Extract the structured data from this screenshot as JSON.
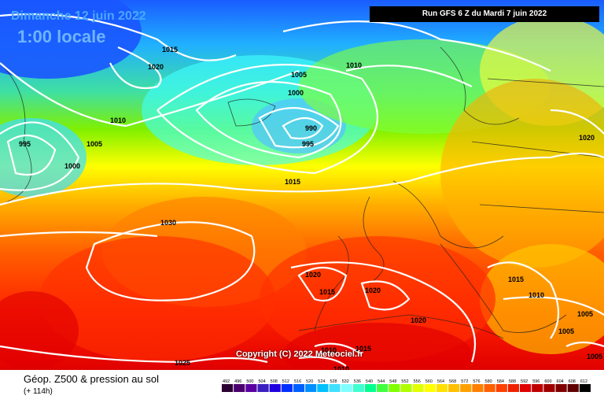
{
  "header": {
    "date": "Dimanche 12 juin 2022",
    "time": "1:00 locale",
    "run": "Run GFS 6 Z du Mardi 7 juin 2022"
  },
  "copyright": "Copyright (C) 2022 Meteociel.fr",
  "footer": {
    "title": "Géop. Z500 & pression au sol",
    "subtitle": "(+ 114h)"
  },
  "legend_values": [
    "492",
    "496",
    "500",
    "504",
    "508",
    "512",
    "516",
    "520",
    "524",
    "528",
    "532",
    "536",
    "540",
    "544",
    "548",
    "552",
    "556",
    "560",
    "564",
    "568",
    "572",
    "576",
    "580",
    "584",
    "588",
    "592",
    "596",
    "600",
    "604",
    "608",
    "612"
  ],
  "legend_colors": [
    "#2b0033",
    "#4b006e",
    "#5a00a0",
    "#3b1fc0",
    "#2000e0",
    "#0030ff",
    "#0060ff",
    "#0090ff",
    "#00c0ff",
    "#40e0ff",
    "#80ffff",
    "#40ffd0",
    "#00ff90",
    "#40ff40",
    "#80ff00",
    "#b0ff00",
    "#e0ff00",
    "#ffff00",
    "#ffe000",
    "#ffc000",
    "#ffa000",
    "#ff8000",
    "#ff6000",
    "#ff4000",
    "#f02000",
    "#e00000",
    "#c00000",
    "#a00000",
    "#800000",
    "#600000",
    "#000000"
  ],
  "isobar_labels": [
    {
      "text": "1015"
    },
    {
      "text": "1020"
    },
    {
      "text": "1010"
    },
    {
      "text": "1005"
    },
    {
      "text": "995"
    },
    {
      "text": "1000"
    },
    {
      "text": "1010"
    },
    {
      "text": "1005"
    },
    {
      "text": "1000"
    },
    {
      "text": "990"
    },
    {
      "text": "995"
    },
    {
      "text": "1015"
    },
    {
      "text": "1030"
    },
    {
      "text": "1020"
    },
    {
      "text": "1015"
    },
    {
      "text": "1020"
    },
    {
      "text": "1020"
    },
    {
      "text": "1015"
    },
    {
      "text": "1010"
    },
    {
      "text": "1005"
    },
    {
      "text": "1005"
    },
    {
      "text": "1005"
    },
    {
      "text": "1020"
    },
    {
      "text": "1025"
    },
    {
      "text": "1015"
    },
    {
      "text": "1010"
    },
    {
      "text": "1010"
    }
  ]
}
